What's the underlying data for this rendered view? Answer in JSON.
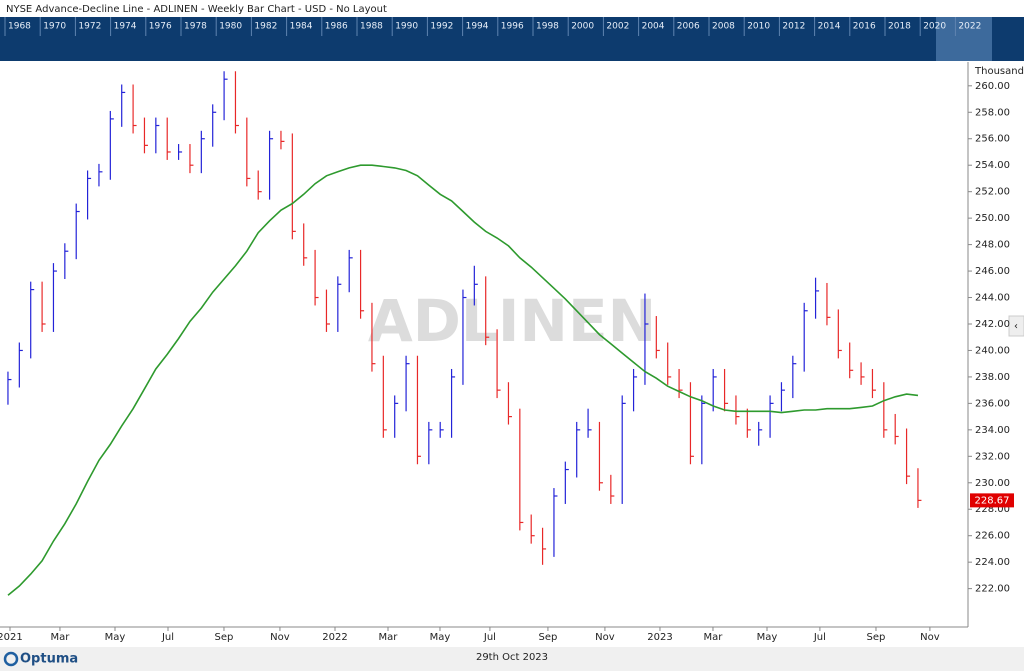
{
  "header": {
    "title": "NYSE  Advance-Decline Line - ADLINEN - Weekly Bar Chart - USD - No Layout"
  },
  "navigator": {
    "years": [
      1968,
      1970,
      1972,
      1974,
      1976,
      1978,
      1980,
      1982,
      1984,
      1986,
      1988,
      1990,
      1992,
      1994,
      1996,
      1998,
      2000,
      2002,
      2004,
      2006,
      2008,
      2010,
      2012,
      2014,
      2016,
      2018,
      2020,
      2022
    ]
  },
  "chart_data": {
    "type": "hlc",
    "watermark": "ADLINEN",
    "y_unit": "Thousand",
    "up_color": "#2323d8",
    "down_color": "#e82828",
    "last_label_color": "#e00000",
    "high": [
      238.4,
      240.6,
      245.2,
      245.2,
      246.6,
      248.1,
      251.1,
      253.6,
      254.1,
      258.1,
      260.1,
      260.1,
      257.6,
      257.6,
      257.6,
      255.6,
      255.6,
      256.6,
      258.6,
      261.1,
      261.1,
      257.6,
      253.6,
      256.6,
      256.6,
      256.4,
      249.6,
      247.6,
      244.6,
      245.6,
      247.6,
      247.6,
      243.6,
      239.6,
      236.6,
      239.6,
      239.6,
      234.6,
      234.6,
      238.6,
      244.6,
      246.4,
      245.6,
      241.6,
      237.6,
      235.6,
      227.6,
      226.6,
      229.6,
      231.6,
      234.6,
      235.6,
      234.6,
      230.6,
      236.6,
      238.6,
      244.3,
      242.6,
      240.6,
      238.6,
      237.6,
      236.6,
      238.6,
      238.6,
      236.6,
      235.6,
      234.6,
      236.6,
      237.6,
      239.6,
      243.6,
      245.5,
      245.1,
      243.1,
      240.6,
      239.1,
      238.6,
      237.6,
      235.2,
      234.1,
      231.1
    ],
    "low": [
      235.9,
      237.2,
      239.4,
      241.4,
      241.4,
      245.4,
      246.9,
      249.9,
      252.4,
      252.9,
      256.9,
      256.4,
      254.9,
      254.9,
      254.4,
      254.4,
      253.4,
      253.4,
      255.4,
      257.4,
      256.4,
      252.4,
      251.4,
      251.4,
      255.2,
      248.4,
      246.4,
      243.4,
      241.4,
      241.4,
      244.4,
      242.4,
      238.4,
      233.4,
      233.4,
      235.4,
      231.4,
      231.4,
      233.4,
      233.4,
      237.4,
      243.4,
      240.4,
      236.4,
      234.4,
      226.4,
      225.4,
      223.8,
      224.4,
      228.4,
      230.4,
      233.4,
      229.4,
      228.4,
      228.4,
      235.4,
      237.4,
      239.4,
      237.4,
      236.4,
      231.4,
      231.4,
      235.4,
      235.4,
      234.4,
      233.4,
      232.8,
      233.4,
      235.4,
      236.4,
      238.4,
      242.4,
      241.9,
      239.4,
      237.9,
      237.4,
      236.4,
      233.4,
      232.9,
      229.9,
      228.1
    ],
    "close": [
      237.8,
      240,
      244.6,
      242,
      246,
      247.5,
      250.5,
      253,
      253.5,
      257.5,
      259.5,
      257,
      255.5,
      257,
      255,
      255,
      254,
      256,
      258,
      260.5,
      257,
      253,
      252,
      256,
      255.8,
      249,
      247,
      244,
      242,
      245,
      247,
      243,
      239,
      234,
      236,
      239,
      232,
      234,
      234,
      238,
      244,
      245,
      241,
      237,
      235,
      227,
      226,
      225,
      229,
      231,
      234,
      234,
      230,
      229,
      236,
      238,
      242,
      240,
      238,
      237,
      232,
      236,
      238,
      236,
      235,
      234,
      234,
      236,
      237,
      239,
      243,
      244.5,
      242.5,
      240,
      238.5,
      238,
      237,
      234,
      233.5,
      230.5,
      228.67
    ],
    "moving_average": {
      "color": "#2e9a2e",
      "values": [
        221.5,
        222.2,
        223.1,
        224.1,
        225.6,
        226.9,
        228.4,
        230.1,
        231.7,
        232.9,
        234.3,
        235.6,
        237.1,
        238.6,
        239.7,
        240.9,
        242.2,
        243.2,
        244.4,
        245.4,
        246.4,
        247.5,
        248.9,
        249.8,
        250.6,
        251.1,
        251.8,
        252.6,
        253.2,
        253.5,
        253.8,
        254.0,
        254.0,
        253.9,
        253.8,
        253.6,
        253.2,
        252.5,
        251.8,
        251.3,
        250.5,
        249.7,
        249.0,
        248.5,
        247.9,
        247.0,
        246.3,
        245.5,
        244.7,
        243.9,
        243.0,
        242.1,
        241.2,
        240.5,
        239.8,
        239.1,
        238.4,
        237.9,
        237.3,
        236.9,
        236.5,
        236.2,
        235.8,
        235.5,
        235.4,
        235.4,
        235.4,
        235.4,
        235.3,
        235.4,
        235.5,
        235.5,
        235.6,
        235.6,
        235.6,
        235.7,
        235.8,
        236.2,
        236.5,
        236.7,
        236.6
      ]
    },
    "xlim": [
      -0.7,
      84.4
    ],
    "xticks": [
      {
        "value": 0.18,
        "label": "2021"
      },
      {
        "value": 4.57,
        "label": "Mar"
      },
      {
        "value": 9.41,
        "label": "May"
      },
      {
        "value": 14.07,
        "label": "Jul"
      },
      {
        "value": 18.99,
        "label": "Sep"
      },
      {
        "value": 23.91,
        "label": "Nov"
      },
      {
        "value": 28.75,
        "label": "2022"
      },
      {
        "value": 33.41,
        "label": "Mar"
      },
      {
        "value": 37.98,
        "label": "May"
      },
      {
        "value": 42.37,
        "label": "Jul"
      },
      {
        "value": 47.47,
        "label": "Sep"
      },
      {
        "value": 52.48,
        "label": "Nov"
      },
      {
        "value": 57.32,
        "label": "2023"
      },
      {
        "value": 61.98,
        "label": "Mar"
      },
      {
        "value": 66.73,
        "label": "May"
      },
      {
        "value": 71.38,
        "label": "Jul"
      },
      {
        "value": 76.31,
        "label": "Sep"
      },
      {
        "value": 81.05,
        "label": "Nov"
      }
    ],
    "ylim": [
      219.1,
      261.8
    ],
    "yticks": [
      {
        "value": 222,
        "label": "222.00"
      },
      {
        "value": 224,
        "label": "224.00"
      },
      {
        "value": 226,
        "label": "226.00"
      },
      {
        "value": 228,
        "label": "228.00"
      },
      {
        "value": 230,
        "label": "230.00"
      },
      {
        "value": 232,
        "label": "232.00"
      },
      {
        "value": 234,
        "label": "234.00"
      },
      {
        "value": 236,
        "label": "236.00"
      },
      {
        "value": 238,
        "label": "238.00"
      },
      {
        "value": 240,
        "label": "240.00"
      },
      {
        "value": 242,
        "label": "242.00"
      },
      {
        "value": 244,
        "label": "244.00"
      },
      {
        "value": 246,
        "label": "246.00"
      },
      {
        "value": 248,
        "label": "248.00"
      },
      {
        "value": 250,
        "label": "250.00"
      },
      {
        "value": 252,
        "label": "252.00"
      },
      {
        "value": 254,
        "label": "254.00"
      },
      {
        "value": 256,
        "label": "256.00"
      },
      {
        "value": 258,
        "label": "258.00"
      },
      {
        "value": 260,
        "label": "260.00"
      }
    ],
    "grid": false
  },
  "footer": {
    "brand": "Optuma",
    "date": "29th Oct 2023"
  }
}
